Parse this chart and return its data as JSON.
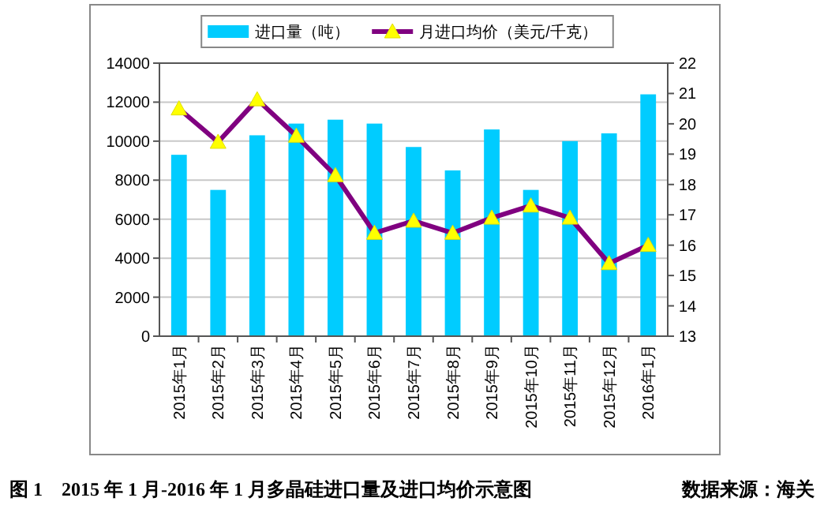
{
  "chart_data": {
    "type": "bar",
    "title": "图 1　2015 年 1 月-2016 年 1 月多晶硅进口量及进口均价示意图",
    "annotations": [
      "数据来源：海关"
    ],
    "categories": [
      "2015年1月",
      "2015年2月",
      "2015年3月",
      "2015年4月",
      "2015年5月",
      "2015年6月",
      "2015年7月",
      "2015年8月",
      "2015年9月",
      "2015年10月",
      "2015年11月",
      "2015年12月",
      "2016年1月"
    ],
    "series": [
      {
        "name": "进口量（吨）",
        "color": "#00ccff",
        "values": [
          9300,
          7500,
          10300,
          10900,
          11100,
          10900,
          9700,
          8500,
          10600,
          7500,
          10000,
          10400,
          12400
        ]
      },
      {
        "name": "月进口均价（美元/千克）",
        "type": "line",
        "axis": "y2",
        "color": "#800080",
        "marker": "triangle",
        "values": [
          20.5,
          19.4,
          20.8,
          19.6,
          18.3,
          16.4,
          16.8,
          16.4,
          16.9,
          17.3,
          16.9,
          15.4,
          16.0
        ]
      }
    ],
    "ylim": [
      0,
      14000
    ],
    "yticks": [
      0,
      2000,
      4000,
      6000,
      8000,
      10000,
      12000,
      14000
    ],
    "y2lim": [
      13,
      22
    ],
    "y2ticks": [
      13,
      14,
      15,
      16,
      17,
      18,
      19,
      20,
      21,
      22
    ],
    "grid": "y",
    "legend": "top"
  }
}
